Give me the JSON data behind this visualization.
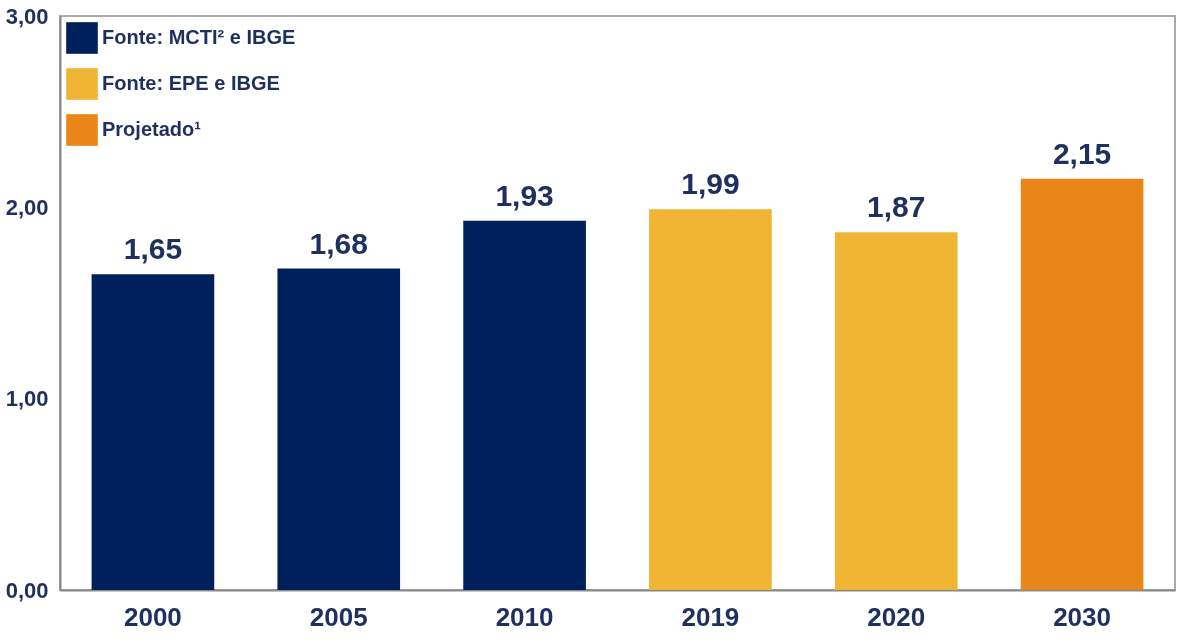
{
  "chart_data": {
    "type": "bar",
    "categories": [
      "2000",
      "2005",
      "2010",
      "2019",
      "2020",
      "2030"
    ],
    "series": [
      {
        "name": "Fonte: MCTI² e IBGE",
        "color": "#00205c",
        "values": [
          1.65,
          1.68,
          1.93,
          null,
          null,
          null
        ],
        "value_labels": [
          "1,65",
          "1,68",
          "1,93",
          null,
          null,
          null
        ]
      },
      {
        "name": "Fonte: EPE e IBGE",
        "color": "#f0b535",
        "values": [
          null,
          null,
          null,
          1.99,
          1.87,
          null
        ],
        "value_labels": [
          null,
          null,
          null,
          "1,99",
          "1,87",
          null
        ]
      },
      {
        "name": "Projetado¹",
        "color": "#e8861a",
        "values": [
          null,
          null,
          null,
          null,
          null,
          2.15
        ],
        "value_labels": [
          null,
          null,
          null,
          null,
          null,
          "2,15"
        ]
      }
    ],
    "ylim": [
      0,
      3
    ],
    "yticks": [
      {
        "value": 0,
        "label": "0,00"
      },
      {
        "value": 1,
        "label": "1,00"
      },
      {
        "value": 2,
        "label": "2,00"
      },
      {
        "value": 3,
        "label": "3,00"
      }
    ],
    "grid": false,
    "legend": "top left"
  }
}
